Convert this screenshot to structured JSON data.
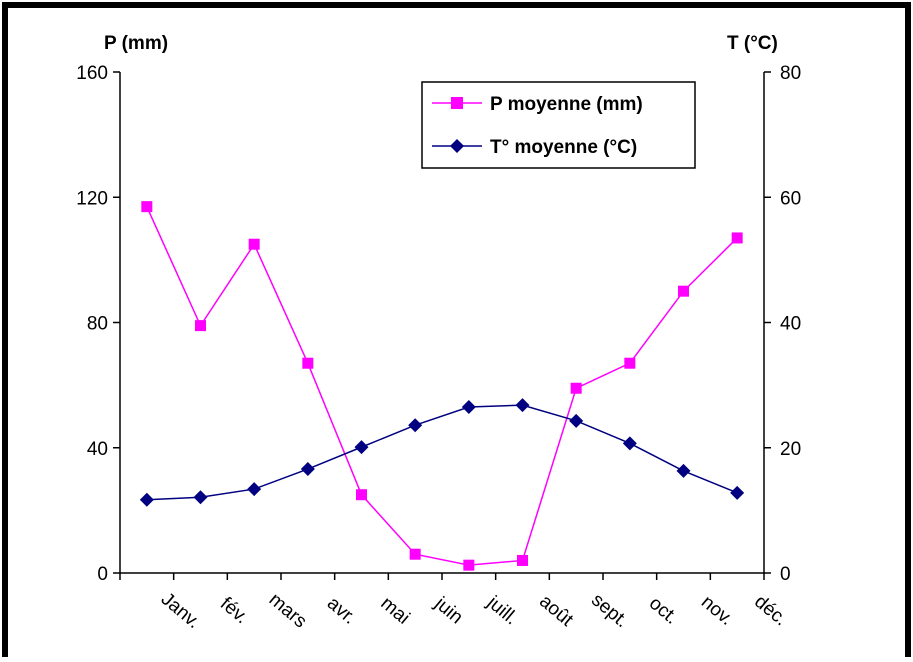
{
  "chart_data": {
    "type": "line",
    "categories": [
      "Janv.",
      "fév.",
      "mars",
      "avr.",
      "mai",
      "juin",
      "juill.",
      "août",
      "sept.",
      "oct.",
      "nov.",
      "déc."
    ],
    "series": [
      {
        "name": "P moyenne (mm)",
        "axis": "left",
        "color": "#ff00ff",
        "marker": "square",
        "values": [
          117,
          79,
          105,
          67,
          25,
          6,
          2.5,
          4,
          59,
          67,
          90,
          107
        ]
      },
      {
        "name": "T° moyenne (°C)",
        "axis": "right",
        "color": "#000080",
        "marker": "diamond",
        "values": [
          11.7,
          12.1,
          13.4,
          16.6,
          20.1,
          23.6,
          26.5,
          26.8,
          24.3,
          20.7,
          16.3,
          12.8
        ]
      }
    ],
    "ylabel_left": "P (mm)",
    "ylabel_right": "T (°C)",
    "ylim_left": [
      0,
      160
    ],
    "ylim_right": [
      0,
      80
    ],
    "yticks_left": [
      0,
      40,
      80,
      120,
      160
    ],
    "yticks_right": [
      0,
      20,
      40,
      60,
      80
    ],
    "grid": false,
    "legend_position": "top-right"
  }
}
